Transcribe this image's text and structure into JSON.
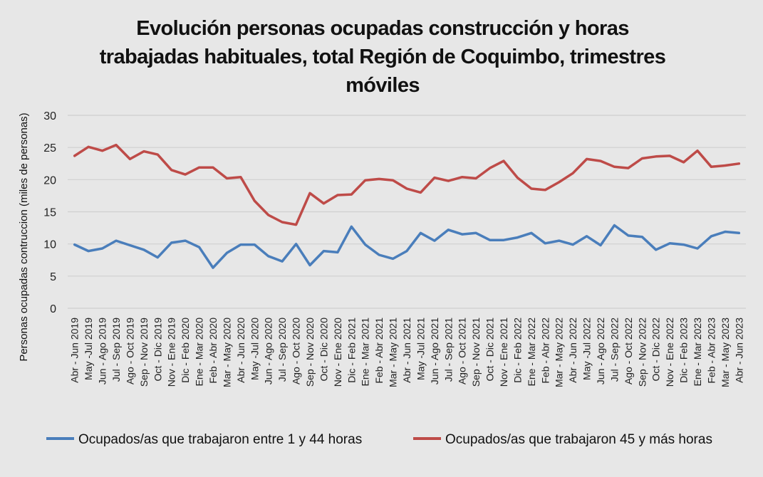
{
  "chart_data": {
    "type": "line",
    "title_lines": [
      "Evolución personas ocupadas construcción y horas",
      "trabajadas habituales, total Región de Coquimbo, trimestres",
      "móviles"
    ],
    "xlabel": "",
    "ylabel": "Personas ocupadas contruccion (miles de personas)",
    "ylim": [
      0,
      30
    ],
    "yticks": [
      0,
      5,
      10,
      15,
      20,
      25,
      30
    ],
    "grid": true,
    "legend_position": "bottom",
    "categories": [
      "Abr - Jun 2019",
      "May -Jul 2019",
      "Jun - Ago 2019",
      "Jul - Sep 2019",
      "Ago - Oct 2019",
      "Sep - Nov 2019",
      "Oct - Dic 2019",
      "Nov - Ene 2019",
      "Dic - Feb 2020",
      "Ene - Mar 2020",
      "Feb - Abr 2020",
      "Mar - May 2020",
      "Abr - Jun 2020",
      "May -Jul 2020",
      "Jun - Ago 2020",
      "Jul - Sep 2020",
      "Ago - Oct 2020",
      "Sep - Nov 2020",
      "Oct - Dic 2020",
      "Nov - Ene 2020",
      "Dic - Feb 2021",
      "Ene - Mar 2021",
      "Feb - Abr 2021",
      "Mar - May 2021",
      "Abr - Jun 2021",
      "May -Jul 2021",
      "Jun - Ago 2021",
      "Jul - Sep 2021",
      "Ago - Oct 2021",
      "Sep - Nov 2021",
      "Oct - Dic 2021",
      "Nov - Ene 2021",
      "Dic - Feb 2022",
      "Ene - Mar 2022",
      "Feb - Abr 2022",
      "Mar - May 2022",
      "Abr - Jun 2022",
      "May -Jul 2022",
      "Jun - Ago 2022",
      "Jul - Sep 2022",
      "Ago - Oct 2022",
      "Sep - Nov 2022",
      "Oct - Dic 2022",
      "Nov - Ene 2022",
      "Dic - Feb 2023",
      "Ene - Mar 2023",
      "Feb - Abr 2023",
      "Mar - May 2023",
      "Abr - Jun 2023"
    ],
    "series": [
      {
        "name": "Ocupados/as que trabajaron entre 1 y 44 horas",
        "color": "#4a7ebb",
        "values": [
          9.9,
          8.9,
          9.3,
          10.5,
          9.8,
          9.1,
          7.9,
          10.2,
          10.5,
          9.5,
          6.3,
          8.6,
          9.9,
          9.9,
          8.1,
          7.3,
          10.0,
          6.7,
          8.9,
          8.7,
          12.7,
          9.9,
          8.3,
          7.7,
          8.9,
          11.7,
          10.5,
          12.2,
          11.5,
          11.7,
          10.6,
          10.6,
          11.0,
          11.7,
          10.1,
          10.5,
          9.9,
          11.2,
          9.8,
          12.9,
          11.3,
          11.1,
          9.1,
          10.1,
          9.9,
          9.3,
          11.2,
          11.9,
          11.7
        ]
      },
      {
        "name": "Ocupados/as que trabajaron 45 y más horas",
        "color": "#be4b48",
        "values": [
          23.7,
          25.1,
          24.5,
          25.4,
          23.2,
          24.4,
          23.9,
          21.5,
          20.8,
          21.9,
          21.9,
          20.2,
          20.4,
          16.7,
          14.5,
          13.4,
          13.0,
          17.9,
          16.3,
          17.6,
          17.7,
          19.9,
          20.1,
          19.9,
          18.6,
          18.0,
          20.3,
          19.8,
          20.4,
          20.2,
          21.8,
          22.9,
          20.3,
          18.6,
          18.4,
          19.6,
          21.0,
          23.2,
          22.9,
          22.0,
          21.8,
          23.3,
          23.6,
          23.7,
          22.7,
          24.5,
          22.0,
          22.2,
          22.5
        ]
      }
    ]
  }
}
